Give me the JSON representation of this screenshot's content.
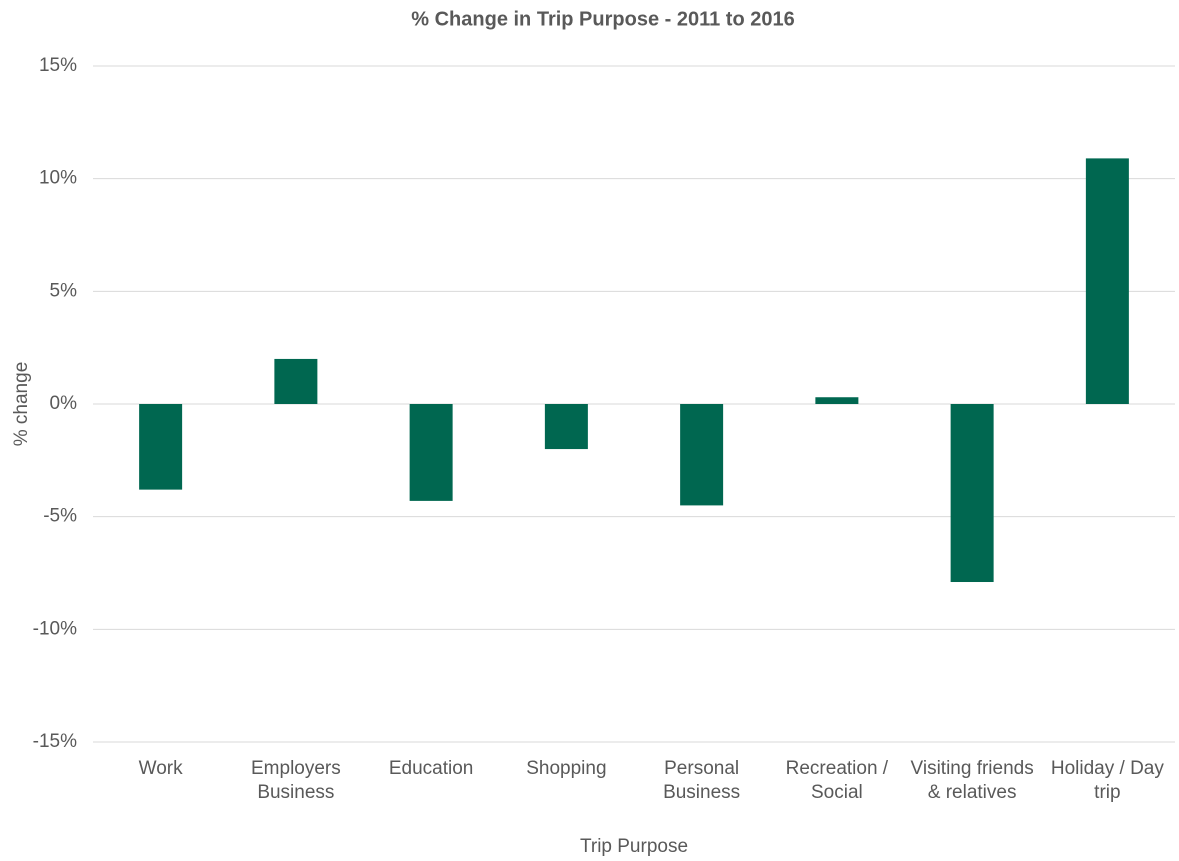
{
  "chart_data": {
    "type": "bar",
    "title": "% Change in Trip Purpose - 2011 to 2016",
    "x_label": "Trip Purpose",
    "y_label": "% change",
    "categories": [
      "Work",
      "Employers Business",
      "Education",
      "Shopping",
      "Personal Business",
      "Recreation / Social",
      "Visiting friends & relatives",
      "Holiday / Day trip"
    ],
    "values": [
      -3.8,
      2.0,
      -4.3,
      -2.0,
      -4.5,
      0.3,
      -7.9,
      10.9
    ],
    "color": "#006750",
    "ylim": [
      -15,
      15
    ],
    "yticks": [
      {
        "value": -15,
        "label": "-15%"
      },
      {
        "value": -10,
        "label": "-10%"
      },
      {
        "value": -5,
        "label": "-5%"
      },
      {
        "value": 0,
        "label": "0%"
      },
      {
        "value": 5,
        "label": "5%"
      },
      {
        "value": 10,
        "label": "10%"
      },
      {
        "value": 15,
        "label": "15%"
      }
    ],
    "grid": true
  }
}
